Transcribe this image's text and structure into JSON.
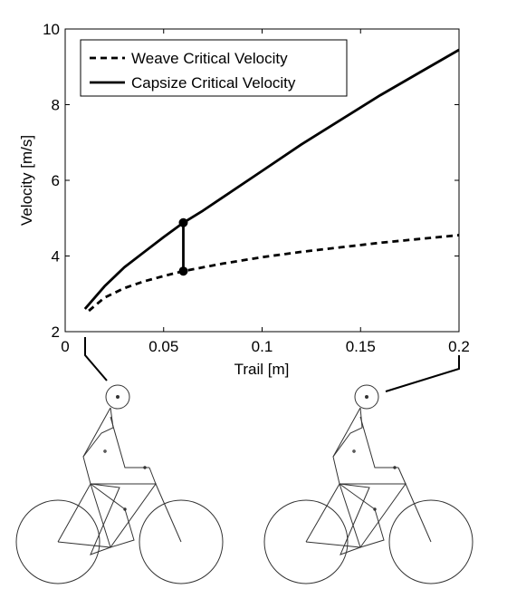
{
  "chart_data": {
    "type": "line",
    "xlabel": "Trail [m]",
    "ylabel": "Velocity [m/s]",
    "xlim": [
      0,
      0.2
    ],
    "ylim": [
      2,
      10
    ],
    "xticks": [
      "0",
      "0.05",
      "0.1",
      "0.15",
      "0.2"
    ],
    "yticks": [
      "2",
      "4",
      "6",
      "8",
      "10"
    ],
    "grid": false,
    "legend": "top-left",
    "series": [
      {
        "name": "Weave Critical Velocity",
        "style": "dashed",
        "color": "#000000",
        "x": [
          0.012,
          0.02,
          0.03,
          0.04,
          0.05,
          0.06,
          0.07,
          0.08,
          0.1,
          0.12,
          0.14,
          0.16,
          0.18,
          0.2
        ],
        "y": [
          2.55,
          2.9,
          3.15,
          3.33,
          3.47,
          3.6,
          3.7,
          3.8,
          3.97,
          4.11,
          4.23,
          4.35,
          4.45,
          4.55
        ]
      },
      {
        "name": "Capsize Critical Velocity",
        "style": "solid",
        "color": "#000000",
        "x": [
          0.01,
          0.02,
          0.03,
          0.04,
          0.05,
          0.06,
          0.07,
          0.08,
          0.1,
          0.12,
          0.14,
          0.16,
          0.18,
          0.2
        ],
        "y": [
          2.6,
          3.2,
          3.7,
          4.1,
          4.5,
          4.88,
          5.2,
          5.55,
          6.25,
          6.95,
          7.6,
          8.25,
          8.85,
          9.45
        ]
      }
    ],
    "markers": [
      {
        "x": 0.06,
        "y": 4.88
      },
      {
        "x": 0.06,
        "y": 3.6
      }
    ],
    "marker_link": {
      "x": 0.06,
      "y_from": 3.6,
      "y_to": 4.88
    }
  },
  "illustrations": [
    {
      "name": "bicycle-rider-small-trail",
      "linked_x": 0.0
    },
    {
      "name": "bicycle-rider-large-trail",
      "linked_x": 0.2
    }
  ]
}
